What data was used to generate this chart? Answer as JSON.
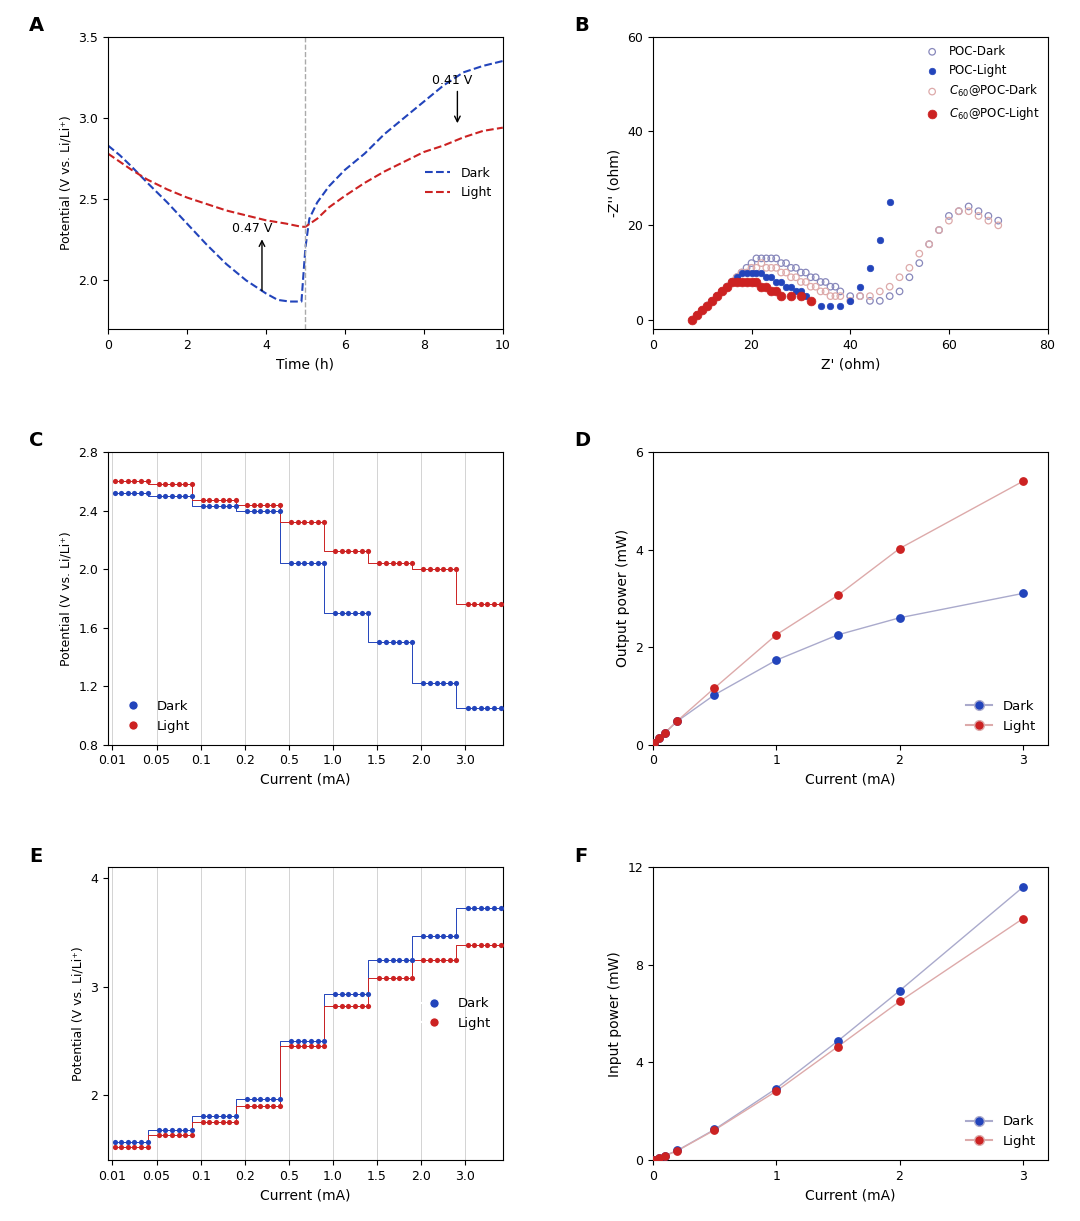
{
  "panel_A": {
    "dark_x": [
      0,
      0.3,
      0.6,
      1.0,
      1.5,
      2.0,
      2.5,
      3.0,
      3.5,
      4.0,
      4.3,
      4.6,
      4.9,
      5.0,
      5.1,
      5.3,
      5.6,
      6.0,
      6.5,
      7.0,
      7.5,
      8.0,
      8.5,
      9.0,
      9.5,
      10.0
    ],
    "dark_y": [
      2.83,
      2.77,
      2.7,
      2.6,
      2.48,
      2.35,
      2.22,
      2.1,
      2.0,
      1.92,
      1.88,
      1.87,
      1.87,
      2.2,
      2.38,
      2.48,
      2.58,
      2.68,
      2.78,
      2.9,
      3.0,
      3.1,
      3.2,
      3.28,
      3.32,
      3.35
    ],
    "light_x": [
      0,
      0.3,
      0.6,
      1.0,
      1.5,
      2.0,
      2.5,
      3.0,
      3.5,
      4.0,
      4.5,
      4.9,
      5.0,
      5.3,
      5.6,
      6.0,
      6.5,
      7.0,
      7.5,
      8.0,
      8.5,
      9.0,
      9.5,
      10.0
    ],
    "light_y": [
      2.78,
      2.73,
      2.68,
      2.62,
      2.56,
      2.51,
      2.47,
      2.43,
      2.4,
      2.37,
      2.35,
      2.33,
      2.33,
      2.38,
      2.45,
      2.52,
      2.6,
      2.67,
      2.73,
      2.79,
      2.83,
      2.88,
      2.92,
      2.94
    ],
    "vline_x": 5.0,
    "xlabel": "Time (h)",
    "ylabel": "Potential (V vs. Li/Li⁺)",
    "xlim": [
      0,
      10
    ],
    "ylim": [
      1.7,
      3.5
    ],
    "yticks": [
      2.0,
      2.5,
      3.0,
      3.5
    ],
    "xticks": [
      0,
      2,
      4,
      6,
      8,
      10
    ]
  },
  "panel_B": {
    "poc_dark_zr": [
      8,
      9,
      10,
      11,
      12,
      13,
      14,
      15,
      16,
      17,
      18,
      19,
      20,
      21,
      22,
      23,
      24,
      25,
      26,
      27,
      28,
      29,
      30,
      31,
      32,
      33,
      34,
      35,
      36,
      37,
      38,
      40,
      42,
      44,
      46,
      48,
      50,
      52,
      54,
      56,
      58,
      60,
      62,
      64,
      66,
      68,
      70
    ],
    "poc_dark_zi": [
      0,
      1,
      2,
      3,
      4,
      5,
      6,
      7,
      8,
      9,
      10,
      11,
      12,
      13,
      13,
      13,
      13,
      13,
      12,
      12,
      11,
      11,
      10,
      10,
      9,
      9,
      8,
      8,
      7,
      7,
      6,
      5,
      5,
      4,
      4,
      5,
      6,
      9,
      12,
      16,
      19,
      22,
      23,
      24,
      23,
      22,
      21
    ],
    "poc_light_zr": [
      8,
      9,
      10,
      11,
      12,
      13,
      14,
      15,
      16,
      17,
      18,
      19,
      20,
      21,
      22,
      23,
      24,
      25,
      26,
      27,
      28,
      29,
      30,
      31,
      32,
      34,
      36,
      38,
      40,
      42,
      44,
      46,
      48
    ],
    "poc_light_zi": [
      0,
      1,
      2,
      3,
      4,
      5,
      6,
      7,
      8,
      9,
      10,
      10,
      10,
      10,
      10,
      9,
      9,
      8,
      8,
      7,
      7,
      6,
      6,
      5,
      4,
      3,
      3,
      3,
      4,
      7,
      11,
      17,
      25
    ],
    "c60poc_dark_zr": [
      8,
      9,
      10,
      11,
      12,
      13,
      14,
      15,
      16,
      17,
      18,
      19,
      20,
      21,
      22,
      23,
      24,
      25,
      26,
      27,
      28,
      29,
      30,
      31,
      32,
      33,
      34,
      35,
      36,
      37,
      38,
      40,
      42,
      44,
      46,
      48,
      50,
      52,
      54,
      56,
      58,
      60,
      62,
      64,
      66,
      68,
      70
    ],
    "c60poc_dark_zi": [
      0,
      1,
      2,
      3,
      4,
      5,
      6,
      7,
      8,
      9,
      10,
      10,
      11,
      11,
      12,
      11,
      11,
      11,
      10,
      10,
      9,
      9,
      8,
      8,
      7,
      7,
      6,
      6,
      5,
      5,
      5,
      4,
      5,
      5,
      6,
      7,
      9,
      11,
      14,
      16,
      19,
      21,
      23,
      23,
      22,
      21,
      20
    ],
    "c60poc_light_zr": [
      8,
      9,
      10,
      11,
      12,
      13,
      14,
      15,
      16,
      17,
      18,
      19,
      20,
      21,
      22,
      23,
      24,
      25,
      26,
      28,
      30,
      32
    ],
    "c60poc_light_zi": [
      0,
      1,
      2,
      3,
      4,
      5,
      6,
      7,
      8,
      8,
      8,
      8,
      8,
      8,
      7,
      7,
      6,
      6,
      5,
      5,
      5,
      4
    ],
    "xlabel": "Z' (ohm)",
    "ylabel": "-Z'' (ohm)",
    "xlim": [
      0,
      80
    ],
    "ylim": [
      -2,
      60
    ],
    "xticks": [
      0,
      20,
      40,
      60,
      80
    ],
    "yticks": [
      0,
      20,
      40,
      60
    ]
  },
  "panel_C": {
    "step_positions": [
      0,
      1,
      2,
      3,
      4,
      5,
      6,
      7,
      8
    ],
    "xlabels": [
      "0.01",
      "0.05",
      "0.1",
      "0.2",
      "0.5",
      "1.0",
      "1.5",
      "2.0",
      "3.0"
    ],
    "dark_step_y": [
      2.52,
      2.5,
      2.43,
      2.4,
      2.04,
      1.7,
      1.5,
      1.22,
      1.05
    ],
    "light_step_y": [
      2.6,
      2.58,
      2.47,
      2.44,
      2.32,
      2.12,
      2.04,
      2.0,
      1.76
    ],
    "xlabel": "Current (mA)",
    "ylabel": "Potential (V vs. Li/Li⁺)",
    "ylim": [
      0.8,
      2.8
    ],
    "yticks": [
      0.8,
      1.2,
      1.6,
      2.0,
      2.4,
      2.8
    ],
    "n_dots": 6
  },
  "panel_D": {
    "dark_x": [
      0.01,
      0.05,
      0.1,
      0.2,
      0.5,
      1.0,
      1.5,
      2.0,
      3.0
    ],
    "dark_y": [
      0.025,
      0.125,
      0.243,
      0.482,
      1.02,
      1.73,
      2.25,
      2.6,
      3.1
    ],
    "light_x": [
      0.01,
      0.05,
      0.1,
      0.2,
      0.5,
      1.0,
      1.5,
      2.0,
      3.0
    ],
    "light_y": [
      0.026,
      0.129,
      0.247,
      0.49,
      1.16,
      2.25,
      3.06,
      4.02,
      5.4
    ],
    "xlabel": "Current (mA)",
    "ylabel": "Output power (mW)",
    "xlim": [
      0,
      3.2
    ],
    "ylim": [
      0,
      6
    ],
    "xticks": [
      0,
      1,
      2,
      3
    ],
    "yticks": [
      0,
      2,
      4,
      6
    ]
  },
  "panel_E": {
    "step_positions": [
      0,
      1,
      2,
      3,
      4,
      5,
      6,
      7,
      8
    ],
    "xlabels": [
      "0.01",
      "0.05",
      "0.1",
      "0.2",
      "0.5",
      "1.0",
      "1.5",
      "2.0",
      "3.0"
    ],
    "dark_step_y": [
      1.57,
      1.68,
      1.81,
      1.96,
      2.5,
      2.93,
      3.25,
      3.47,
      3.73
    ],
    "light_step_y": [
      1.52,
      1.63,
      1.75,
      1.9,
      2.45,
      2.82,
      3.08,
      3.25,
      3.38
    ],
    "xlabel": "Current (mA)",
    "ylabel": "Potential (V vs. Li/Li⁺)",
    "ylim": [
      1.4,
      4.1
    ],
    "yticks": [
      2.0,
      3.0,
      4.0
    ],
    "n_dots": 6
  },
  "panel_F": {
    "dark_x": [
      0.01,
      0.05,
      0.1,
      0.2,
      0.5,
      1.0,
      1.5,
      2.0,
      3.0
    ],
    "dark_y": [
      0.016,
      0.084,
      0.181,
      0.392,
      1.25,
      2.93,
      4.88,
      6.94,
      11.19
    ],
    "light_x": [
      0.01,
      0.05,
      0.1,
      0.2,
      0.5,
      1.0,
      1.5,
      2.0,
      3.0
    ],
    "light_y": [
      0.015,
      0.082,
      0.175,
      0.38,
      1.225,
      2.82,
      4.65,
      6.5,
      9.9
    ],
    "xlabel": "Current (mA)",
    "ylabel": "Input power (mW)",
    "xlim": [
      0,
      3.2
    ],
    "ylim": [
      0,
      12
    ],
    "xticks": [
      0,
      1,
      2,
      3
    ],
    "yticks": [
      0,
      4,
      8,
      12
    ]
  },
  "colors": {
    "dark_blue": "#2244bb",
    "light_red": "#cc2222",
    "poc_dark_open": "#8888bb",
    "poc_light_fill": "#2244bb",
    "c60_dark_open": "#ddaaaa",
    "c60_light_fill": "#cc2222"
  }
}
